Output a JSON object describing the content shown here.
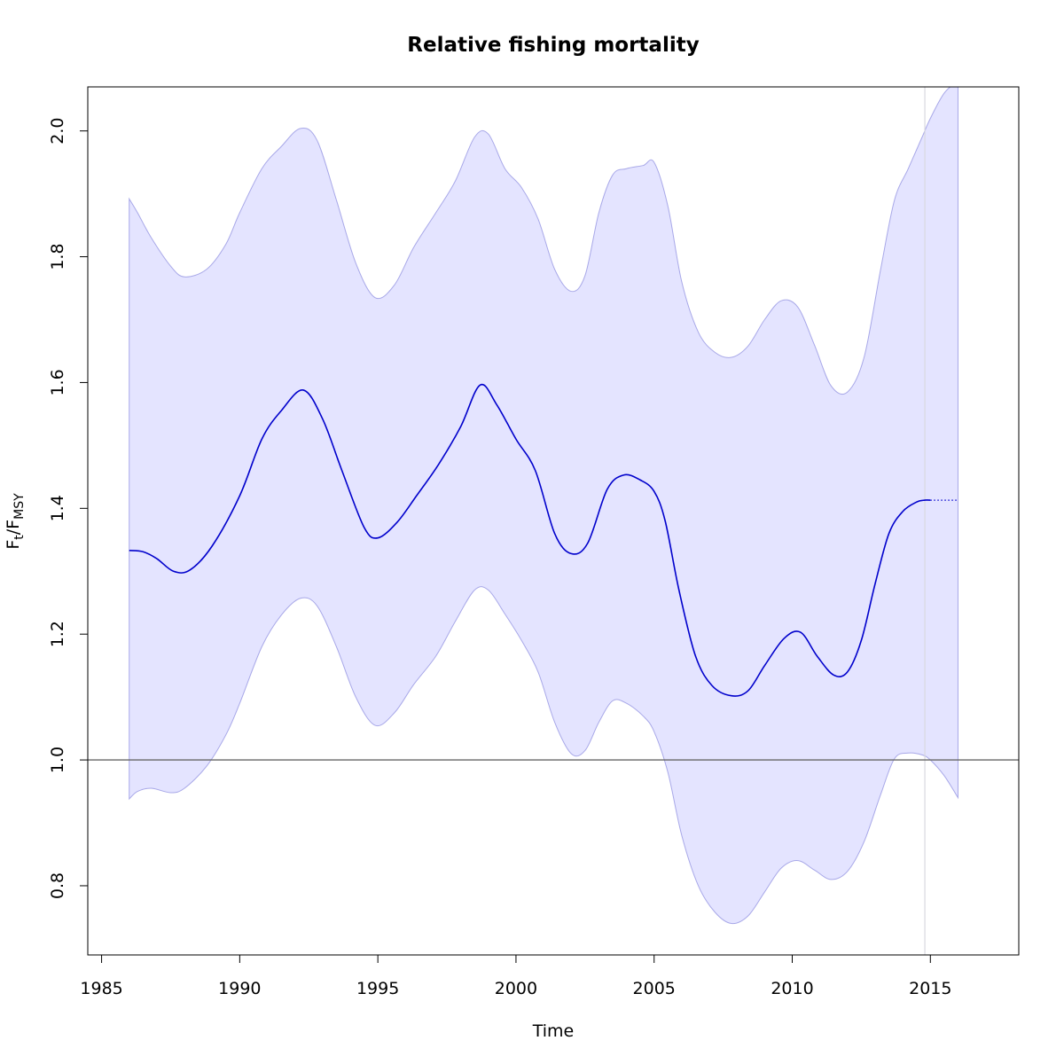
{
  "chart_data": {
    "type": "line",
    "title": "Relative fishing mortality",
    "xlabel": "Time",
    "ylabel": {
      "base": "F",
      "num_sub": "t",
      "sep": "/",
      "den_base": "F",
      "den_sub": "MSY"
    },
    "xlim": [
      1984.5,
      2018.2
    ],
    "ylim": [
      0.69,
      2.07
    ],
    "x_ticks": [
      1985,
      1990,
      1995,
      2000,
      2005,
      2010,
      2015
    ],
    "y_ticks": [
      0.8,
      1.0,
      1.2,
      1.4,
      1.6,
      1.8,
      2.0
    ],
    "reference_line_y": 1.0,
    "vertical_line_x": 2014.8,
    "colors": {
      "line": "#0000cc",
      "band_fill": "#e4e4ff",
      "band_edge": "#a8a8e8",
      "ref_line": "#666666",
      "vline": "#d8d8e0"
    },
    "series": [
      {
        "name": "",
        "role": "estimate",
        "x": [
          1986.0,
          1986.5,
          1987.0,
          1987.6,
          1988.2,
          1989.0,
          1990.0,
          1990.8,
          1991.5,
          1992.3,
          1993.0,
          1993.7,
          1994.5,
          1995.0,
          1995.7,
          1996.4,
          1997.2,
          1998.0,
          1998.7,
          1999.3,
          2000.0,
          2000.7,
          2001.4,
          2002.0,
          2002.6,
          2003.3,
          2003.9,
          2004.5,
          2005.0,
          2005.4,
          2005.9,
          2006.5,
          2007.1,
          2007.8,
          2008.4,
          2009.0,
          2009.7,
          2010.3,
          2010.9,
          2011.5,
          2012.0,
          2012.5,
          2013.0,
          2013.5,
          2014.0,
          2014.5,
          2014.8,
          2015.0
        ],
        "y": [
          1.333,
          1.331,
          1.32,
          1.3,
          1.302,
          1.34,
          1.42,
          1.51,
          1.555,
          1.588,
          1.542,
          1.46,
          1.37,
          1.353,
          1.378,
          1.42,
          1.47,
          1.53,
          1.596,
          1.565,
          1.51,
          1.46,
          1.36,
          1.328,
          1.345,
          1.43,
          1.453,
          1.445,
          1.427,
          1.38,
          1.27,
          1.165,
          1.118,
          1.102,
          1.11,
          1.15,
          1.193,
          1.203,
          1.165,
          1.135,
          1.14,
          1.19,
          1.28,
          1.36,
          1.395,
          1.41,
          1.413,
          1.413
        ]
      },
      {
        "name": "",
        "role": "projection",
        "x": [
          2015.0,
          2016.0
        ],
        "y": [
          1.413,
          1.413
        ]
      }
    ],
    "band": {
      "x": [
        1986.0,
        1986.3,
        1986.8,
        1987.5,
        1988.0,
        1988.8,
        1989.5,
        1990.0,
        1990.8,
        1991.5,
        1992.2,
        1992.8,
        1993.5,
        1994.2,
        1994.9,
        1995.6,
        1996.3,
        1997.1,
        1997.8,
        1998.5,
        1999.0,
        1999.6,
        2000.2,
        2000.8,
        2001.4,
        2002.0,
        2002.5,
        2003.0,
        2003.5,
        2004.0,
        2004.6,
        2005.0,
        2005.5,
        2006.0,
        2006.6,
        2007.2,
        2007.8,
        2008.4,
        2009.0,
        2009.6,
        2010.2,
        2010.8,
        2011.4,
        2012.0,
        2012.6,
        2013.2,
        2013.7,
        2014.2,
        2014.7,
        2015.0,
        2015.5,
        2016.0
      ],
      "lower": [
        0.938,
        0.95,
        0.955,
        0.948,
        0.955,
        0.99,
        1.04,
        1.09,
        1.18,
        1.23,
        1.257,
        1.245,
        1.18,
        1.1,
        1.055,
        1.075,
        1.12,
        1.165,
        1.22,
        1.27,
        1.27,
        1.232,
        1.19,
        1.14,
        1.06,
        1.01,
        1.015,
        1.06,
        1.094,
        1.09,
        1.07,
        1.045,
        0.98,
        0.88,
        0.8,
        0.758,
        0.74,
        0.752,
        0.79,
        0.828,
        0.84,
        0.825,
        0.81,
        0.823,
        0.87,
        0.945,
        1.002,
        1.011,
        1.008,
        1.0,
        0.975,
        0.94
      ],
      "upper": [
        1.892,
        1.87,
        1.83,
        1.785,
        1.768,
        1.78,
        1.82,
        1.87,
        1.94,
        1.975,
        2.004,
        1.985,
        1.89,
        1.79,
        1.735,
        1.755,
        1.815,
        1.87,
        1.92,
        1.99,
        1.995,
        1.94,
        1.91,
        1.86,
        1.78,
        1.745,
        1.77,
        1.87,
        1.93,
        1.94,
        1.945,
        1.95,
        1.88,
        1.76,
        1.68,
        1.648,
        1.64,
        1.658,
        1.7,
        1.73,
        1.72,
        1.66,
        1.595,
        1.585,
        1.64,
        1.78,
        1.89,
        1.94,
        1.99,
        2.02,
        2.06,
        2.08
      ]
    }
  }
}
